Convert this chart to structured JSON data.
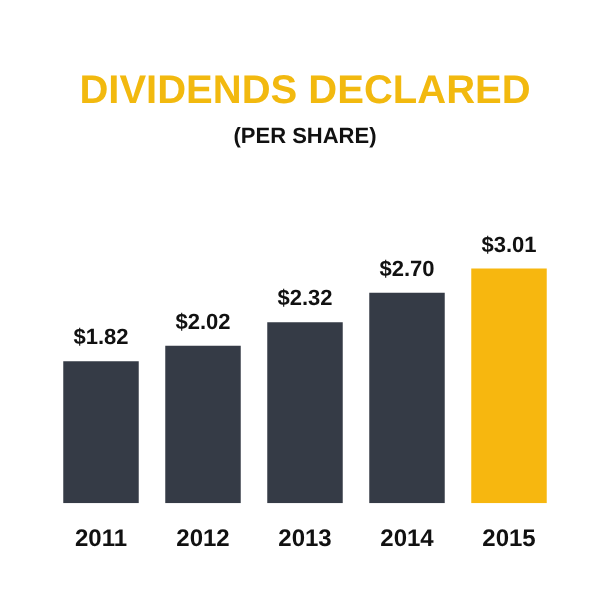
{
  "chart_data": {
    "type": "bar",
    "title": "DIVIDENDS DECLARED",
    "subtitle": "(PER SHARE)",
    "categories": [
      "2011",
      "2012",
      "2013",
      "2014",
      "2015"
    ],
    "values": [
      1.82,
      2.02,
      2.32,
      2.7,
      3.01
    ],
    "value_labels": [
      "$1.82",
      "$2.02",
      "$2.32",
      "$2.70",
      "$3.01"
    ],
    "colors": [
      "#353b46",
      "#353b46",
      "#353b46",
      "#353b46",
      "#f7b70f"
    ],
    "legend": false
  }
}
